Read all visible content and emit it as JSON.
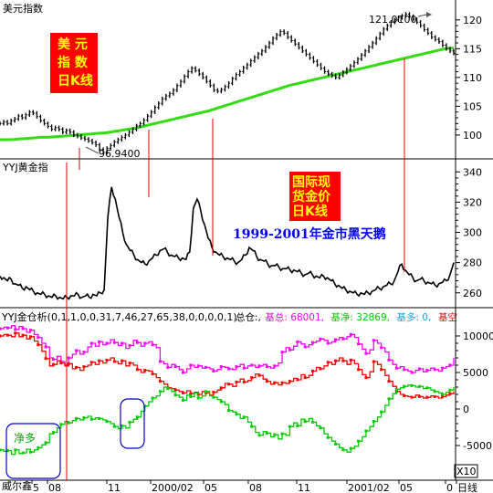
{
  "chart_data": [
    {
      "type": "line",
      "panel_title": "美元指数",
      "badge_text": [
        "美  元",
        "指  数",
        "日K线"
      ],
      "y_ticks": [
        100,
        105,
        110,
        115,
        120
      ],
      "ylim": [
        96.5,
        122.5
      ],
      "annotations": {
        "high_label": "121.0100",
        "low_label": "96.9400"
      },
      "series": [
        {
          "role": "price",
          "color": "#000000",
          "values": [
            102,
            102.3,
            102,
            102.5,
            102.8,
            103.3,
            103,
            103.5,
            104,
            103.8,
            103.2,
            102.5,
            102,
            101.5,
            101,
            101.3,
            101,
            100.5,
            100.8,
            100.5,
            100,
            99.8,
            99.5,
            99.3,
            99,
            98.7,
            98.3,
            97.5,
            97,
            97.7,
            98.2,
            98.8,
            99.2,
            99.6,
            100,
            100.5,
            101,
            101.6,
            102,
            102.6,
            103.3,
            104,
            104.8,
            105.5,
            106.3,
            106.8,
            107.2,
            107.8,
            108.6,
            109.3,
            110.2,
            111,
            111.6,
            111.2,
            110.6,
            110,
            109.3,
            108.6,
            107.8,
            107.6,
            107.9,
            108.4,
            109,
            109.8,
            110.5,
            111,
            111.7,
            112.2,
            112.9,
            113.5,
            114.1,
            114.6,
            115.3,
            116,
            116.8,
            117.4,
            118,
            117.7,
            117,
            116.4,
            115.8,
            115.2,
            114.6,
            114,
            113.4,
            112.8,
            112.2,
            111.6,
            111,
            110.6,
            110.3,
            110,
            110.4,
            110.9,
            111.4,
            112,
            112.6,
            113.2,
            113.9,
            114.6,
            115.3,
            116,
            116.8,
            117.6,
            118.4,
            119,
            119.6,
            120,
            120.4,
            120.7,
            121,
            120.6,
            120.1,
            119.6,
            119,
            118.3,
            117.7,
            117,
            116.6,
            116.2,
            115.6,
            115,
            114.6,
            114.2
          ]
        },
        {
          "role": "moving-average",
          "color": "#33dd11",
          "values": [
            99.2,
            99.2,
            99.2,
            99.2,
            99.25,
            99.3,
            99.35,
            99.4,
            99.45,
            99.5,
            99.55,
            99.6,
            99.6,
            99.6,
            99.65,
            99.7,
            99.75,
            99.8,
            99.85,
            99.9,
            99.95,
            100,
            100.05,
            100.1,
            100.15,
            100.2,
            100.25,
            100.3,
            100.35,
            100.4,
            100.5,
            100.6,
            100.7,
            100.8,
            100.9,
            101,
            101.1,
            101.2,
            101.35,
            101.5,
            101.65,
            101.8,
            101.95,
            102.1,
            102.25,
            102.4,
            102.55,
            102.7,
            102.85,
            103,
            103.15,
            103.3,
            103.45,
            103.6,
            103.75,
            103.9,
            104.05,
            104.2,
            104.4,
            104.6,
            104.8,
            105,
            105.2,
            105.4,
            105.6,
            105.8,
            106,
            106.2,
            106.4,
            106.6,
            106.8,
            107,
            107.2,
            107.4,
            107.6,
            107.8,
            108,
            108.2,
            108.4,
            108.6,
            108.75,
            108.9,
            109.05,
            109.2,
            109.35,
            109.5,
            109.65,
            109.8,
            109.95,
            110.1,
            110.25,
            110.4,
            110.55,
            110.7,
            110.85,
            111,
            111.15,
            111.3,
            111.45,
            111.6,
            111.75,
            111.9,
            112.05,
            112.2,
            112.35,
            112.5,
            112.65,
            112.8,
            112.95,
            113.1,
            113.25,
            113.4,
            113.55,
            113.7,
            113.85,
            114,
            114.15,
            114.3,
            114.45,
            114.6,
            114.75,
            114.9,
            115.05,
            115.1,
            115.1
          ]
        }
      ]
    },
    {
      "type": "line",
      "panel_title": "YYJ黄金指",
      "badge_text": [
        "国际现",
        "货金价",
        "日K线"
      ],
      "headline": "1999-2001年金市黑天鹅",
      "y_ticks": [
        260,
        280,
        300,
        320,
        340
      ],
      "ylim": [
        252,
        345
      ],
      "series": [
        {
          "role": "price",
          "color": "#000000",
          "values": [
            271,
            270,
            268,
            269,
            266,
            265,
            263,
            264,
            262,
            261,
            260,
            259,
            259,
            258,
            257,
            258,
            257,
            256,
            257,
            258,
            258,
            259,
            257,
            258,
            257,
            259,
            258,
            260,
            262,
            310,
            330,
            322,
            310,
            300,
            292,
            288,
            285,
            282,
            280,
            279,
            281,
            283,
            285,
            288,
            289,
            287,
            285,
            284,
            283,
            283,
            282,
            287,
            316,
            322,
            314,
            305,
            296,
            290,
            287,
            285,
            284,
            283,
            282,
            281,
            280,
            282,
            285,
            290,
            288,
            284,
            282,
            281,
            279,
            278,
            278,
            277,
            276,
            276,
            275,
            275,
            274,
            273,
            272,
            273,
            272,
            271,
            270,
            271,
            270,
            268,
            266,
            265,
            263,
            262,
            261,
            260,
            259,
            260,
            259,
            260,
            261,
            262,
            263,
            264,
            265,
            266,
            268,
            274,
            279,
            275,
            272,
            270,
            268,
            269,
            268,
            267,
            266,
            265,
            266,
            267,
            268,
            272,
            280
          ]
        }
      ]
    },
    {
      "type": "line",
      "panel_title": "YYJ金仓析(0,1,1,0,0,31,7,46,27,65,38,0,0,0,0,1)",
      "legend": [
        {
          "label": "总仓:",
          "value": "",
          "color": "#000000"
        },
        {
          "label": "基总:",
          "value": "68001",
          "color": "#ff00ff"
        },
        {
          "label": "基净:",
          "value": "32869",
          "color": "#00cc00"
        },
        {
          "label": "基多:",
          "value": "0",
          "color": "#00aaff"
        },
        {
          "label": "基空",
          "value": "",
          "color": "#ff0000"
        }
      ],
      "y_ticks": [
        -5000,
        0,
        5000,
        10000
      ],
      "ylim": [
        -7500,
        11500
      ],
      "unit": "X10",
      "annotation": "净多",
      "footer": "威尔鑫",
      "x_labels": [
        "5",
        "08",
        "11",
        "2000/02",
        "05",
        "08",
        "11",
        "2001/02",
        "05",
        "0",
        "日线"
      ],
      "series": [
        {
          "role": "基总",
          "color": "#ff00ff",
          "values": [
            11000,
            11200,
            11100,
            11400,
            10900,
            11300,
            11000,
            10500,
            10800,
            10200,
            9800,
            9000,
            8500,
            7000,
            6800,
            7200,
            6500,
            6000,
            7000,
            7500,
            8000,
            7500,
            7800,
            8500,
            9000,
            8600,
            9200,
            8800,
            9000,
            9500,
            9100,
            8700,
            9000,
            8300,
            8700,
            9400,
            9100,
            8600,
            9000,
            9200,
            8800,
            8400,
            6500,
            6200,
            5700,
            6100,
            5800,
            5400,
            5000,
            5500,
            6000,
            5700,
            5900,
            5600,
            5700,
            5500,
            5200,
            5400,
            5800,
            5700,
            5500,
            5400,
            5800,
            6100,
            5600,
            5900,
            6000,
            5700,
            5900,
            6100,
            5800,
            5600,
            5900,
            6300,
            7800,
            8400,
            8100,
            8600,
            9200,
            8900,
            8500,
            8800,
            9100,
            9300,
            9600,
            9400,
            9000,
            9200,
            9500,
            9800,
            9600,
            9900,
            10200,
            9800,
            8900,
            8200,
            7600,
            8100,
            9400,
            9000,
            8400,
            7800,
            6700,
            6100,
            5600,
            5800,
            5400,
            5200,
            5000,
            5300,
            5500,
            5100,
            5300,
            5600,
            5400,
            5200,
            5600,
            5800,
            6000,
            7000
          ]
        },
        {
          "role": "基空",
          "color": "#ff0000",
          "values": [
            10000,
            10200,
            10100,
            9900,
            10400,
            9900,
            10100,
            9600,
            9900,
            9300,
            8800,
            7900,
            6900,
            5900,
            6100,
            6600,
            6300,
            5900,
            6200,
            5500,
            5700,
            5300,
            5800,
            6000,
            6400,
            6100,
            6600,
            6300,
            6700,
            7000,
            6500,
            6200,
            6600,
            5900,
            6300,
            6000,
            5400,
            5000,
            5300,
            5200,
            4800,
            4300,
            3800,
            3400,
            2900,
            2800,
            2600,
            2400,
            2200,
            2500,
            2100,
            2300,
            2000,
            2400,
            2200,
            1900,
            2300,
            2600,
            2900,
            3500,
            3400,
            3100,
            3700,
            4100,
            3700,
            3900,
            4300,
            4800,
            4600,
            4100,
            3800,
            3400,
            3600,
            3300,
            3600,
            3500,
            3800,
            4200,
            4000,
            4700,
            4300,
            4600,
            5200,
            5700,
            5500,
            5900,
            6400,
            6100,
            6600,
            7000,
            6600,
            6100,
            6700,
            6200,
            5400,
            4700,
            4300,
            5100,
            6500,
            6100,
            5400,
            4600,
            3800,
            3100,
            2400,
            2000,
            1800,
            1700,
            1600,
            1900,
            1700,
            1500,
            1600,
            1800,
            1700,
            1500,
            1700,
            1900,
            2100,
            2400
          ]
        },
        {
          "role": "基净",
          "color": "#00cc00",
          "values": [
            -5600,
            -5800,
            -5700,
            -6200,
            -5600,
            -6100,
            -6000,
            -5500,
            -5900,
            -5600,
            -5300,
            -4900,
            -4600,
            -3400,
            -3200,
            -2600,
            -2100,
            -1700,
            -1900,
            -1600,
            -1300,
            -1500,
            -1200,
            -1000,
            -1400,
            -1200,
            -1300,
            -1500,
            -1700,
            -2000,
            -2400,
            -2700,
            -2300,
            -2600,
            -1800,
            -1400,
            -1100,
            -300,
            400,
            1000,
            1500,
            1800,
            2400,
            3000,
            2800,
            2400,
            1900,
            1600,
            1200,
            1900,
            1700,
            2200,
            1500,
            1800,
            2400,
            1800,
            1600,
            1300,
            1000,
            600,
            -200,
            -400,
            -700,
            -1300,
            -1100,
            -1800,
            -2400,
            -3200,
            -3600,
            -3100,
            -3300,
            -3800,
            -3500,
            -4100,
            -3400,
            -3600,
            -2400,
            -1900,
            -2300,
            -1400,
            -1700,
            -1300,
            -1800,
            -2300,
            -2600,
            -3400,
            -3900,
            -4400,
            -4800,
            -5300,
            -5600,
            -5900,
            -5400,
            -5100,
            -4400,
            -3800,
            -3000,
            -2400,
            -1700,
            -1100,
            -400,
            500,
            1400,
            2100,
            2700,
            2900,
            3100,
            3300,
            3200,
            3000,
            3100,
            2800,
            2900,
            2600,
            2400,
            2200,
            2000,
            2300,
            2600,
            3000
          ]
        }
      ]
    }
  ]
}
